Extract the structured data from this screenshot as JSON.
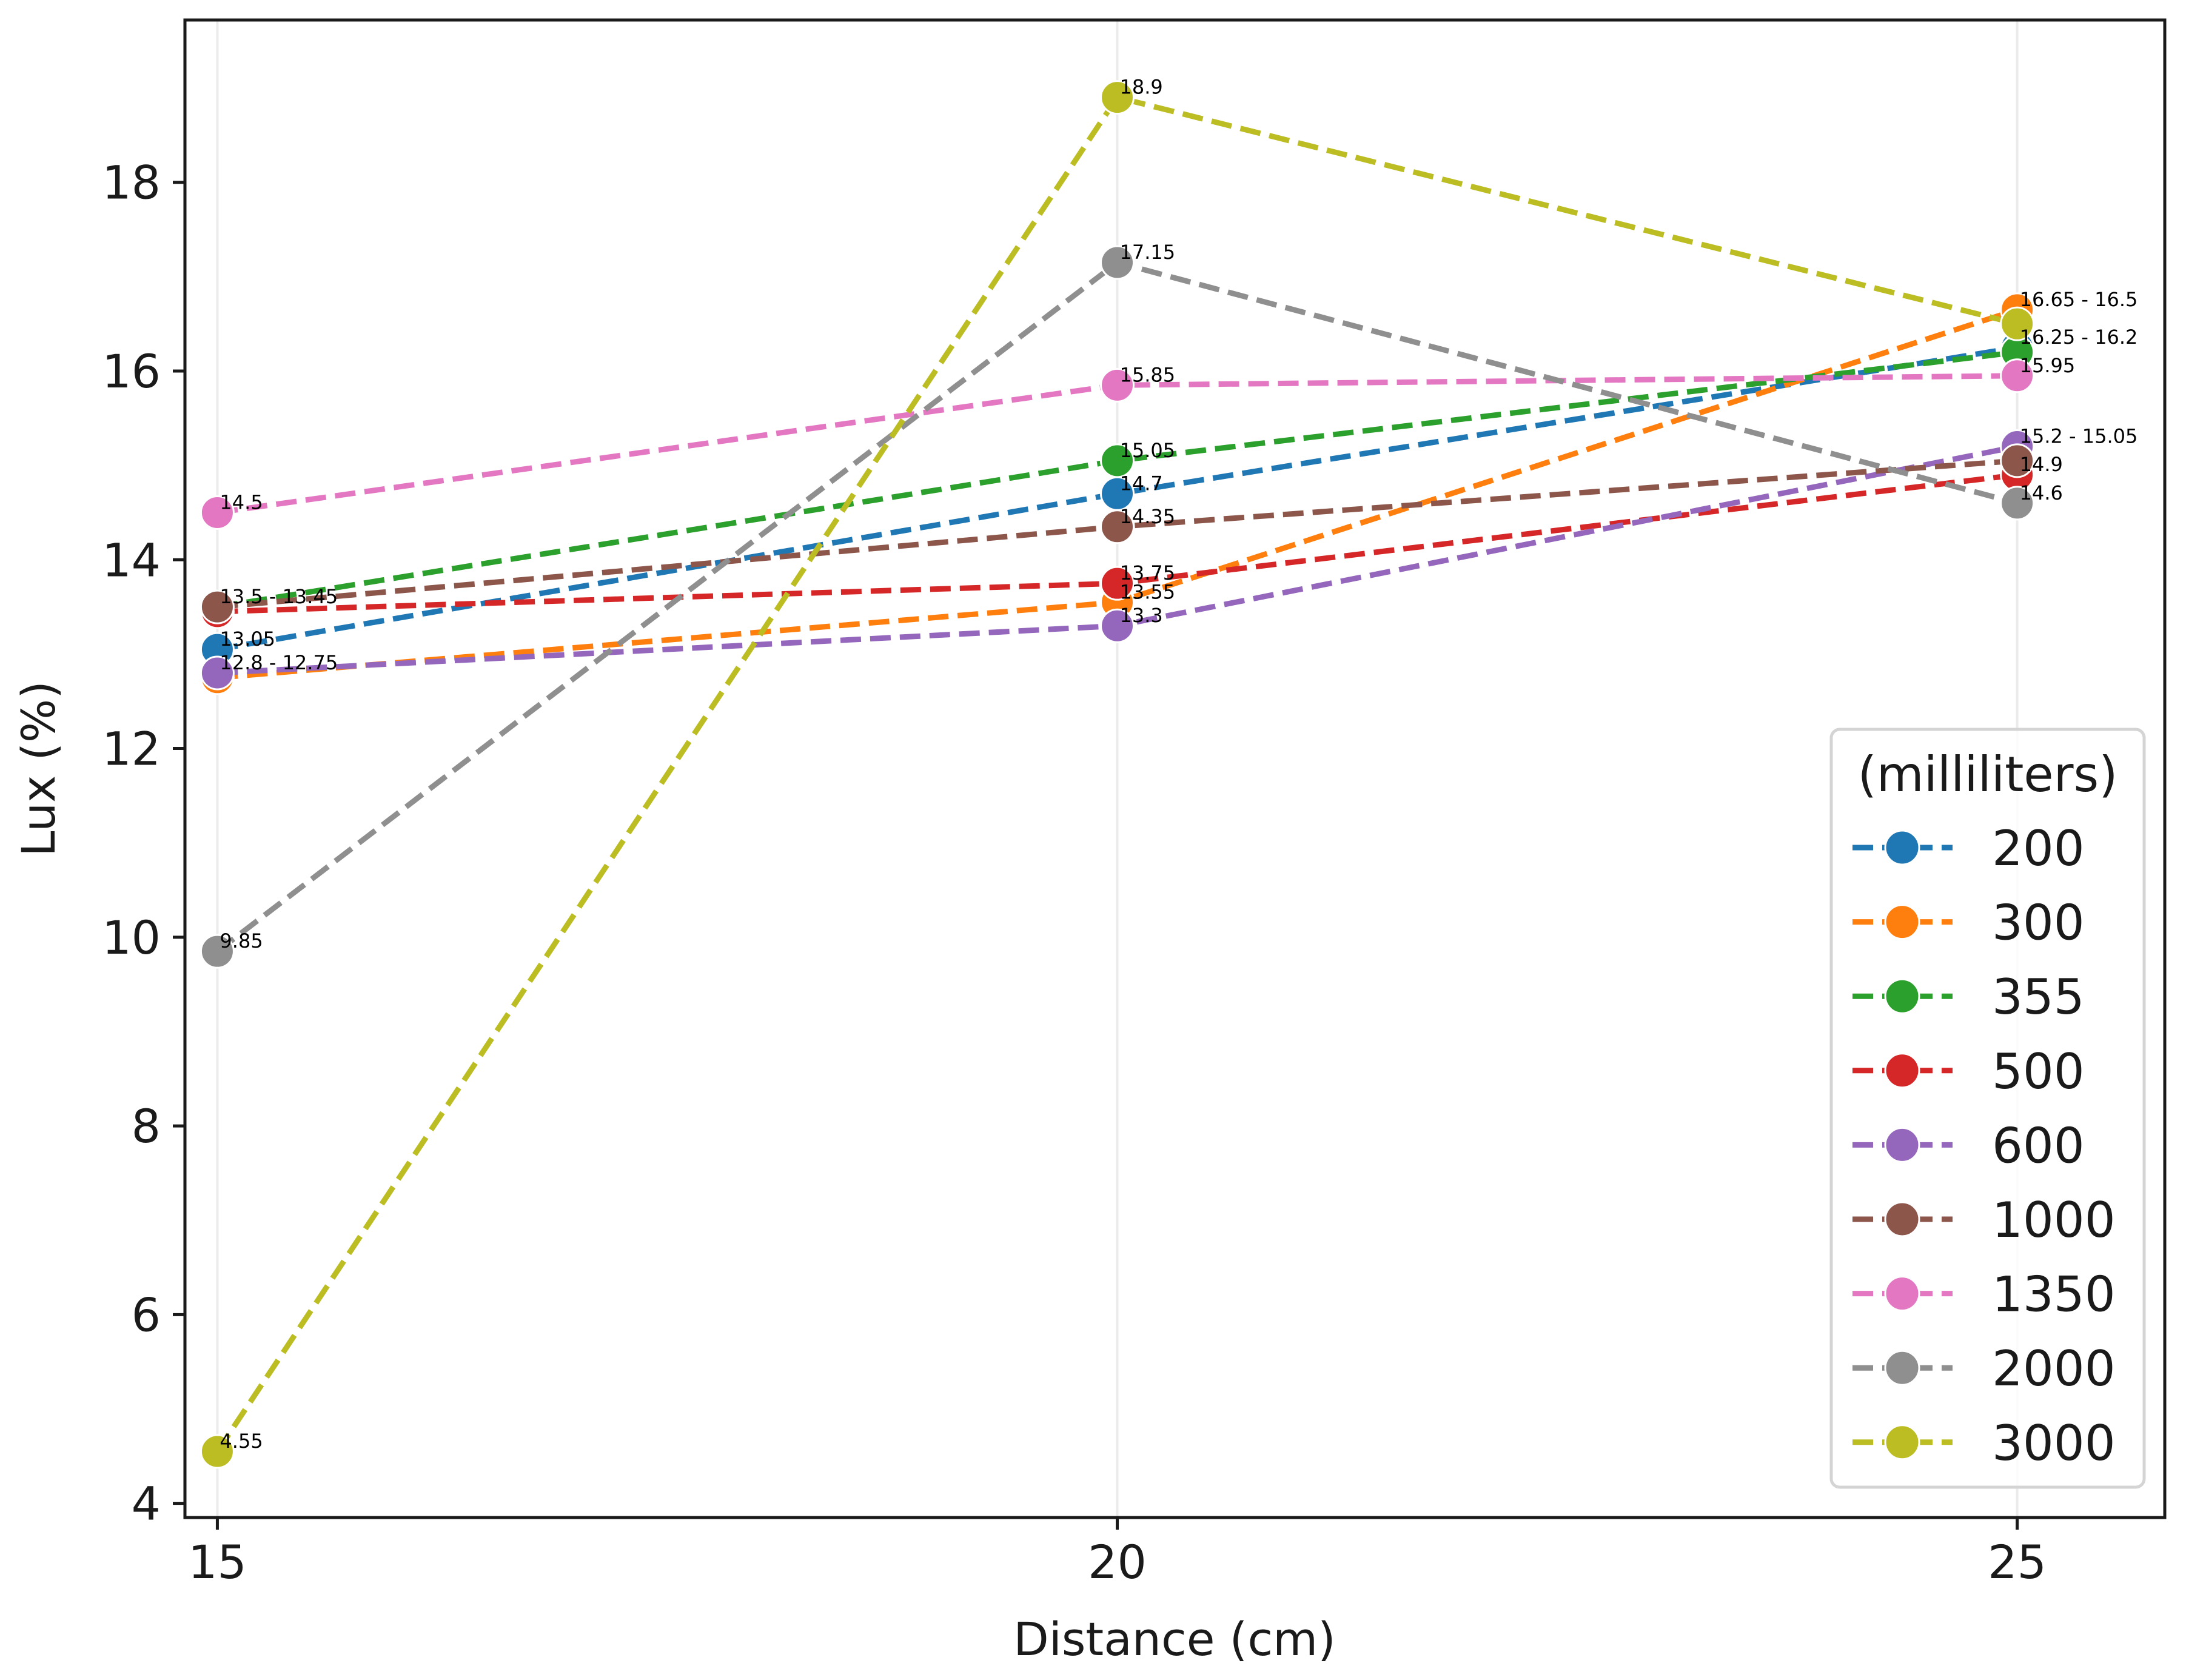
{
  "chart_data": {
    "type": "line",
    "title": "",
    "xlabel": "Distance (cm)",
    "ylabel": "Lux (%)",
    "x": [
      15,
      20,
      25
    ],
    "xticks": [
      "15",
      "20",
      "25"
    ],
    "xlim": [
      14.82,
      25.82
    ],
    "yticks": [
      "4",
      "6",
      "8",
      "10",
      "12",
      "14",
      "16",
      "18"
    ],
    "ylim": [
      3.85,
      19.72
    ],
    "legend_title": "(milliliters)",
    "legend_position": "lower-right",
    "series": [
      {
        "name": "200",
        "color": "#1f77b4",
        "values": [
          13.05,
          14.7,
          16.25
        ]
      },
      {
        "name": "300",
        "color": "#ff7f0e",
        "values": [
          12.75,
          13.55,
          16.65
        ]
      },
      {
        "name": "355",
        "color": "#2ca02c",
        "values": [
          13.5,
          15.05,
          16.2
        ]
      },
      {
        "name": "500",
        "color": "#d62728",
        "values": [
          13.45,
          13.75,
          14.9
        ]
      },
      {
        "name": "600",
        "color": "#9467bd",
        "values": [
          12.8,
          13.3,
          15.2
        ]
      },
      {
        "name": "1000",
        "color": "#8c564b",
        "values": [
          13.5,
          14.35,
          15.05
        ]
      },
      {
        "name": "1350",
        "color": "#e377c2",
        "values": [
          14.5,
          15.85,
          15.95
        ]
      },
      {
        "name": "2000",
        "color": "#8f8f8f",
        "values": [
          9.85,
          17.15,
          14.6
        ]
      },
      {
        "name": "3000",
        "color": "#bcbd22",
        "values": [
          4.55,
          18.9,
          16.5
        ]
      }
    ],
    "annotations": [
      {
        "x": 15,
        "y": 13.5,
        "text": "13.5 - 13.45"
      },
      {
        "x": 15,
        "y": 13.05,
        "text": "13.05"
      },
      {
        "x": 15,
        "y": 12.8,
        "text": "12.8 - 12.75"
      },
      {
        "x": 15,
        "y": 14.5,
        "text": "14.5"
      },
      {
        "x": 15,
        "y": 9.85,
        "text": "9.85"
      },
      {
        "x": 15,
        "y": 4.55,
        "text": "4.55"
      },
      {
        "x": 20,
        "y": 18.9,
        "text": "18.9"
      },
      {
        "x": 20,
        "y": 17.15,
        "text": "17.15"
      },
      {
        "x": 20,
        "y": 15.85,
        "text": "15.85"
      },
      {
        "x": 20,
        "y": 15.05,
        "text": "15.05"
      },
      {
        "x": 20,
        "y": 14.7,
        "text": "14.7"
      },
      {
        "x": 20,
        "y": 14.35,
        "text": "14.35"
      },
      {
        "x": 20,
        "y": 13.75,
        "text": "13.75"
      },
      {
        "x": 20,
        "y": 13.55,
        "text": "13.55"
      },
      {
        "x": 20,
        "y": 13.3,
        "text": "13.3"
      },
      {
        "x": 25,
        "y": 16.65,
        "text": "16.65 - 16.5"
      },
      {
        "x": 25,
        "y": 16.25,
        "text": "16.25 - 16.2"
      },
      {
        "x": 25,
        "y": 15.95,
        "text": "15.95"
      },
      {
        "x": 25,
        "y": 15.2,
        "text": "15.2 - 15.05"
      },
      {
        "x": 25,
        "y": 14.9,
        "text": "14.9"
      },
      {
        "x": 25,
        "y": 14.6,
        "text": "14.6"
      }
    ],
    "grid": "x-only"
  }
}
